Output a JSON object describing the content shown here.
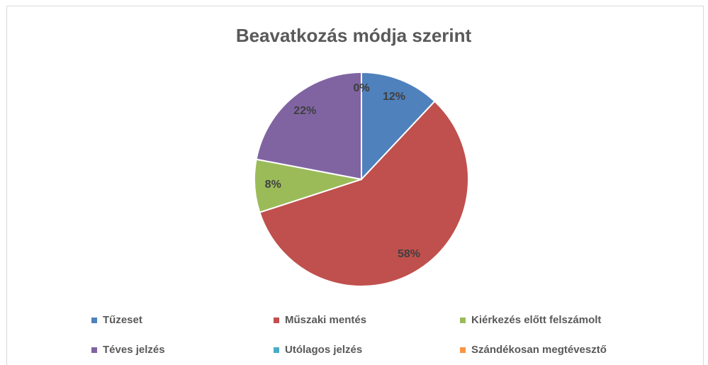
{
  "chart_data": {
    "type": "pie",
    "title": "Beavatkozás módja szerint",
    "categories": [
      "Tűzeset",
      "Műszaki mentés",
      "Kiérkezés előtt felszámolt",
      "Téves jelzés",
      "Utólagos jelzés",
      "Szándékosan megtévesztő"
    ],
    "values": [
      12,
      58,
      8,
      22,
      0,
      0
    ],
    "value_labels": [
      "12%",
      "58%",
      "8%",
      "22%",
      "0%",
      "0%"
    ],
    "colors": [
      "#4f81bd",
      "#c0504d",
      "#9bbb59",
      "#8064a2",
      "#4bacc6",
      "#f79646"
    ],
    "legend": "bottom"
  }
}
